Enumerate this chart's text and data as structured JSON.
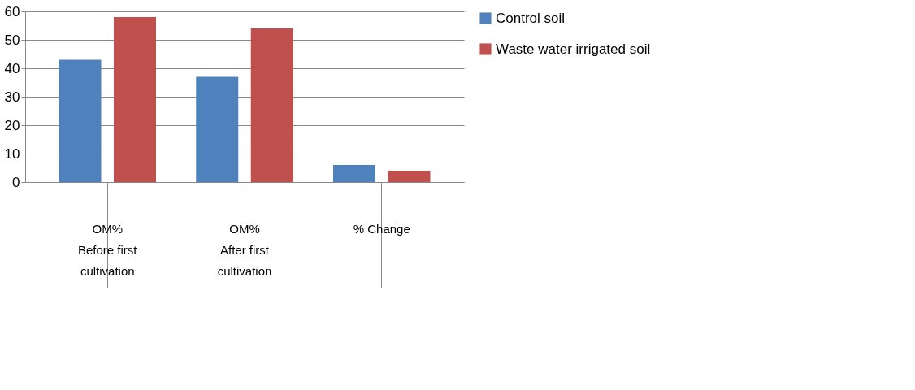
{
  "chart_data": {
    "type": "bar",
    "categories": [
      "OM%\nBefore first cultivation",
      "OM%\nAfter first cultivation",
      "% Change"
    ],
    "series": [
      {
        "name": "Control soil",
        "color": "#4f81bd",
        "values": [
          43,
          37,
          6
        ]
      },
      {
        "name": "Waste water irrigated soil",
        "color": "#c0504d",
        "values": [
          58,
          54,
          4
        ]
      }
    ],
    "ylim": [
      0,
      60
    ],
    "yticks": [
      0,
      10,
      20,
      30,
      40,
      50,
      60
    ],
    "grid": "y",
    "legend": "right"
  }
}
